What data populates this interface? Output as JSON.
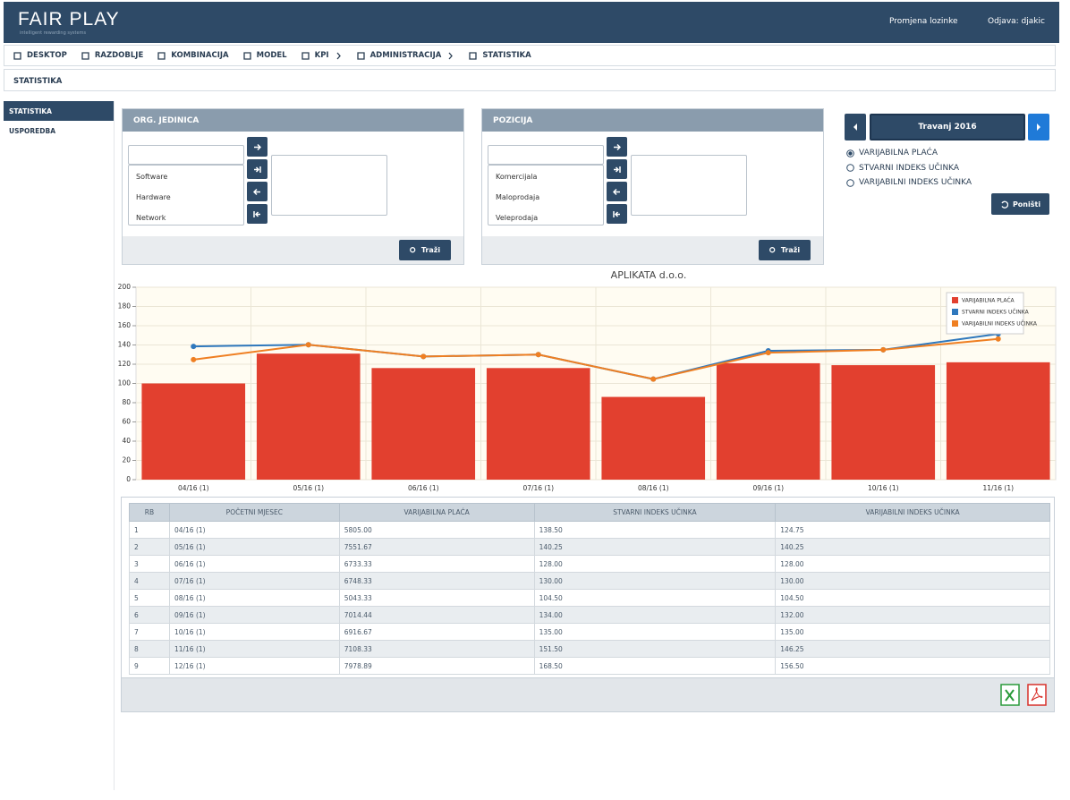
{
  "header": {
    "logo": "FAIR PLAY",
    "tagline": "intelligent rewarding systems",
    "links": [
      "Promjena lozinke",
      "Odjava: djakic"
    ]
  },
  "nav": [
    {
      "label": "DESKTOP"
    },
    {
      "label": "RAZDOBLJE"
    },
    {
      "label": "KOMBINACIJA"
    },
    {
      "label": "MODEL"
    },
    {
      "label": "KPI",
      "submenu": true
    },
    {
      "label": "ADMINISTRACIJA",
      "submenu": true
    },
    {
      "label": "STATISTIKA"
    }
  ],
  "breadcrumb": "STATISTIKA",
  "sidebar": {
    "items": [
      "STATISTIKA",
      "USPOREDBA"
    ],
    "selected": 0
  },
  "panels": [
    {
      "title": "ORG. JEDINICA",
      "items": [
        "Software",
        "Hardware",
        "Network"
      ],
      "button": "Traži"
    },
    {
      "title": "POZICIJA",
      "items": [
        "Komercijala",
        "Maloprodaja",
        "Veleprodaja"
      ],
      "button": "Traži"
    }
  ],
  "period": "Travanj 2016",
  "options": {
    "items": [
      "VARIJABILNA PLAĆA",
      "STVARNI INDEKS UČINKA",
      "VARIJABILNI INDEKS UČINKA"
    ],
    "selected": 0
  },
  "reset": "Poništi",
  "chart": {
    "type": "bar-line",
    "title": "APLIKATA d.o.o.",
    "categories": [
      "04/16 (1)",
      "05/16 (1)",
      "06/16 (1)",
      "07/16 (1)",
      "08/16 (1)",
      "09/16 (1)",
      "10/16 (1)",
      "11/16 (1)"
    ],
    "series": [
      {
        "name": "VARIJABILNA PLAĆA",
        "color": "#e2402f",
        "kind": "bar",
        "values": [
          100,
          131,
          116,
          116,
          86,
          121,
          119,
          122
        ]
      },
      {
        "name": "STVARNI INDEKS UČINKA",
        "color": "#2f78bd",
        "kind": "line",
        "values": [
          138.5,
          140.25,
          128,
          130,
          104.5,
          134,
          135,
          151.5
        ]
      },
      {
        "name": "VARIJABILNI INDEKS UČINKA",
        "color": "#ef7f22",
        "kind": "line",
        "values": [
          124.75,
          140.25,
          128,
          130,
          104.5,
          132,
          135,
          146.25
        ]
      }
    ],
    "ylim": [
      0,
      200
    ],
    "yticks": [
      0,
      20,
      40,
      60,
      80,
      100,
      120,
      140,
      160,
      180,
      200
    ],
    "grid": true
  },
  "table": {
    "columns": [
      "RB",
      "POČETNI MJESEC",
      "VARIJABILNA PLAĆA",
      "STVARNI INDEKS UČINKA",
      "VARIJABILNI INDEKS UČINKA"
    ],
    "rows": [
      [
        "1",
        "04/16 (1)",
        "5805.00",
        "138.50",
        "124.75"
      ],
      [
        "2",
        "05/16 (1)",
        "7551.67",
        "140.25",
        "140.25"
      ],
      [
        "3",
        "06/16 (1)",
        "6733.33",
        "128.00",
        "128.00"
      ],
      [
        "4",
        "07/16 (1)",
        "6748.33",
        "130.00",
        "130.00"
      ],
      [
        "5",
        "08/16 (1)",
        "5043.33",
        "104.50",
        "104.50"
      ],
      [
        "6",
        "09/16 (1)",
        "7014.44",
        "134.00",
        "132.00"
      ],
      [
        "7",
        "10/16 (1)",
        "6916.67",
        "135.00",
        "135.00"
      ],
      [
        "8",
        "11/16 (1)",
        "7108.33",
        "151.50",
        "146.25"
      ],
      [
        "9",
        "12/16 (1)",
        "7978.89",
        "168.50",
        "156.50"
      ]
    ]
  }
}
